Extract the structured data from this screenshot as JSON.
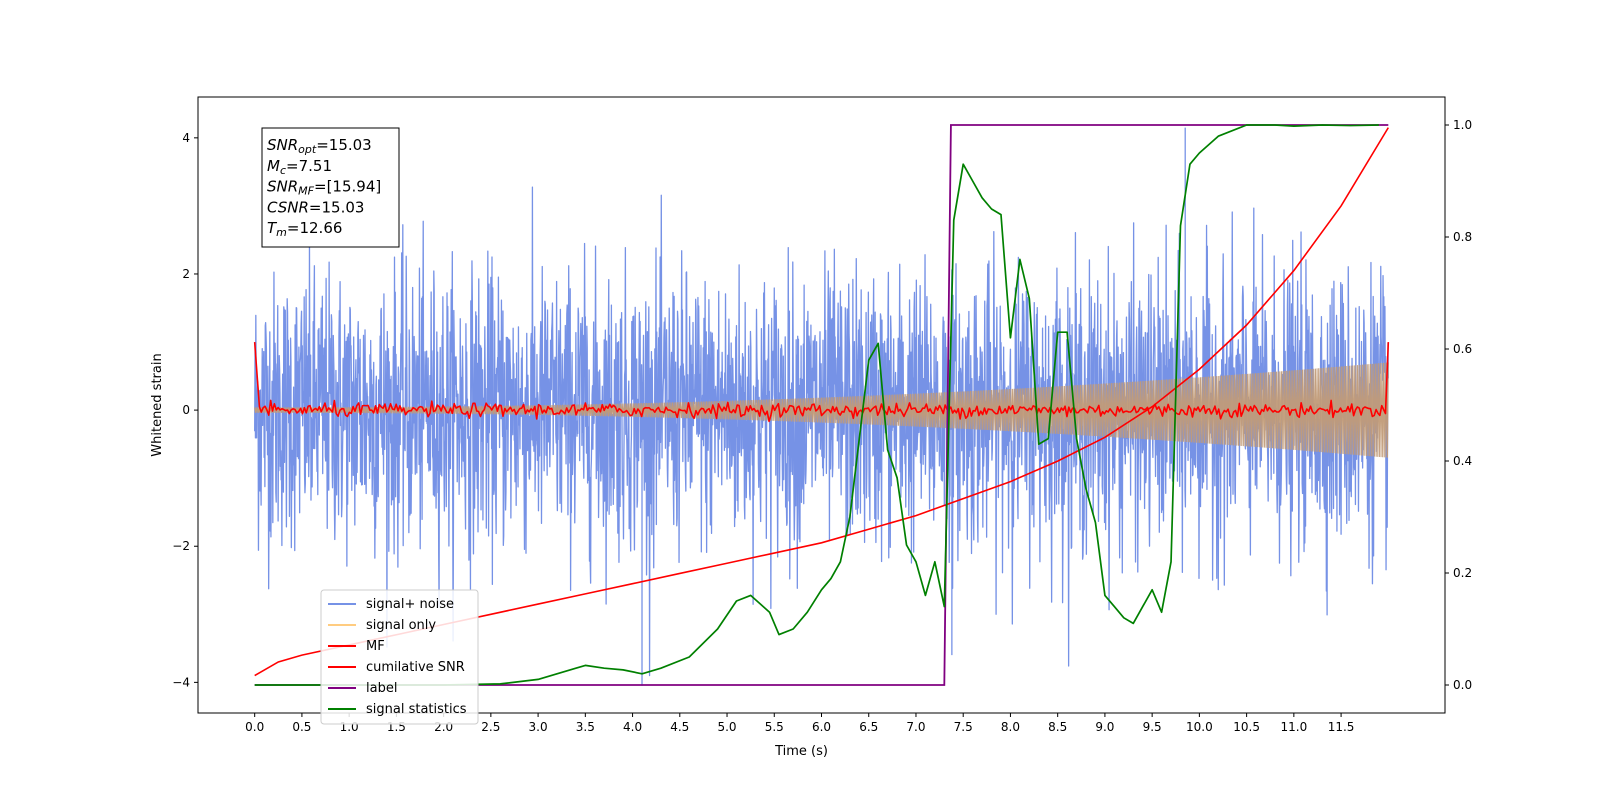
{
  "chart_data": {
    "type": "line",
    "title": "",
    "xlabel": "Time (s)",
    "ylabel": "Whitened strain",
    "y2label": "",
    "xlim": [
      -0.6,
      12.6
    ],
    "ylim": [
      -4.45,
      4.6
    ],
    "y2lim": [
      -0.05,
      1.05
    ],
    "x_ticks": [
      0.0,
      0.5,
      1.0,
      1.5,
      2.0,
      2.5,
      3.0,
      3.5,
      4.0,
      4.5,
      5.0,
      5.5,
      6.0,
      6.5,
      7.0,
      7.5,
      8.0,
      8.5,
      9.0,
      9.5,
      10.0,
      10.5,
      11.0,
      11.5
    ],
    "x_tick_labels": [
      "0.0",
      "0.5",
      "1.0",
      "1.5",
      "2.0",
      "2.5",
      "3.0",
      "3.5",
      "4.0",
      "4.5",
      "5.0",
      "5.5",
      "6.0",
      "6.5",
      "7.0",
      "7.5",
      "8.0",
      "8.5",
      "9.0",
      "9.5",
      "10.0",
      "10.5",
      "11.0",
      "11.5"
    ],
    "y_ticks": [
      -4,
      -2,
      0,
      2,
      4
    ],
    "y_tick_labels": [
      "−4",
      "−2",
      "0",
      "2",
      "4"
    ],
    "y2_ticks": [
      0.0,
      0.2,
      0.4,
      0.6,
      0.8,
      1.0
    ],
    "y2_tick_labels": [
      "0.0",
      "0.2",
      "0.4",
      "0.6",
      "0.8",
      "1.0"
    ],
    "grid": false,
    "legend_position": "lower-left",
    "series": [
      {
        "name": "signal+ noise",
        "color": "#7692e6",
        "axis": "left",
        "kind": "noise",
        "x_range": [
          0.0,
          12.0
        ],
        "std": 1.0,
        "notes_points": [
          [
            4.1,
            -4.05
          ],
          [
            9.85,
            4.15
          ],
          [
            7.38,
            -3.6
          ]
        ]
      },
      {
        "name": "signal only",
        "color": "#ffcc80",
        "axis": "left",
        "kind": "chirp-envelope",
        "x_range": [
          0.0,
          12.0
        ],
        "amplitude_start": 0.04,
        "amplitude_end": 0.7
      },
      {
        "name": "MF",
        "color": "#ff0000",
        "axis": "left",
        "kind": "matched-filter",
        "x_range": [
          0.0,
          12.0
        ],
        "start_value": 1.0,
        "end_value": 1.0,
        "baseline": 0.0
      },
      {
        "name": "cumilative SNR",
        "color": "#ff0000",
        "axis": "left",
        "x": [
          0.0,
          0.25,
          0.5,
          1.0,
          1.5,
          2.0,
          2.5,
          3.0,
          3.5,
          4.0,
          4.5,
          5.0,
          5.5,
          6.0,
          6.5,
          7.0,
          7.5,
          8.0,
          8.5,
          9.0,
          9.5,
          10.0,
          10.5,
          11.0,
          11.5,
          12.0
        ],
        "y": [
          -3.9,
          -3.7,
          -3.6,
          -3.45,
          -3.3,
          -3.15,
          -3.0,
          -2.85,
          -2.7,
          -2.55,
          -2.4,
          -2.25,
          -2.1,
          -1.95,
          -1.75,
          -1.55,
          -1.3,
          -1.05,
          -0.75,
          -0.4,
          0.05,
          0.6,
          1.25,
          2.05,
          3.0,
          4.15
        ]
      },
      {
        "name": "label",
        "color": "#800080",
        "axis": "right",
        "x": [
          0.0,
          7.3,
          7.37,
          12.0
        ],
        "y": [
          0.0,
          0.0,
          1.0,
          1.0
        ]
      },
      {
        "name": "signal statistics",
        "color": "#008000",
        "axis": "right",
        "x": [
          0.0,
          1.0,
          2.0,
          2.6,
          3.0,
          3.4,
          3.5,
          3.7,
          3.9,
          4.1,
          4.3,
          4.6,
          4.9,
          5.1,
          5.25,
          5.45,
          5.55,
          5.7,
          5.85,
          6.0,
          6.1,
          6.2,
          6.3,
          6.4,
          6.5,
          6.6,
          6.7,
          6.8,
          6.9,
          7.0,
          7.1,
          7.2,
          7.3,
          7.4,
          7.5,
          7.6,
          7.7,
          7.8,
          7.9,
          8.0,
          8.1,
          8.2,
          8.3,
          8.4,
          8.5,
          8.6,
          8.7,
          8.8,
          8.9,
          9.0,
          9.1,
          9.2,
          9.3,
          9.4,
          9.5,
          9.6,
          9.7,
          9.8,
          9.9,
          10.0,
          10.2,
          10.5,
          10.8,
          11.0,
          11.3,
          11.6,
          11.9
        ],
        "y": [
          0.0,
          0.0,
          0.0,
          0.002,
          0.01,
          0.03,
          0.035,
          0.03,
          0.027,
          0.02,
          0.03,
          0.05,
          0.1,
          0.15,
          0.16,
          0.13,
          0.09,
          0.1,
          0.13,
          0.17,
          0.19,
          0.22,
          0.3,
          0.44,
          0.58,
          0.61,
          0.42,
          0.37,
          0.25,
          0.22,
          0.16,
          0.22,
          0.14,
          0.83,
          0.93,
          0.9,
          0.87,
          0.85,
          0.84,
          0.62,
          0.76,
          0.69,
          0.43,
          0.44,
          0.63,
          0.63,
          0.44,
          0.35,
          0.29,
          0.16,
          0.14,
          0.12,
          0.11,
          0.14,
          0.17,
          0.13,
          0.22,
          0.82,
          0.93,
          0.95,
          0.98,
          1.0,
          1.0,
          0.998,
          1.0,
          0.999,
          1.0
        ]
      }
    ],
    "annotation": [
      {
        "base": "SNR",
        "sub": "opt",
        "value": "=15.03"
      },
      {
        "base": "M",
        "sub": "c",
        "value": "=7.51"
      },
      {
        "base": "SNR",
        "sub": "MF",
        "value": "=[15.94]"
      },
      {
        "base": "CSNR",
        "sub": "",
        "value": "=15.03"
      },
      {
        "base": "T",
        "sub": "m",
        "value": "=12.66"
      }
    ]
  }
}
